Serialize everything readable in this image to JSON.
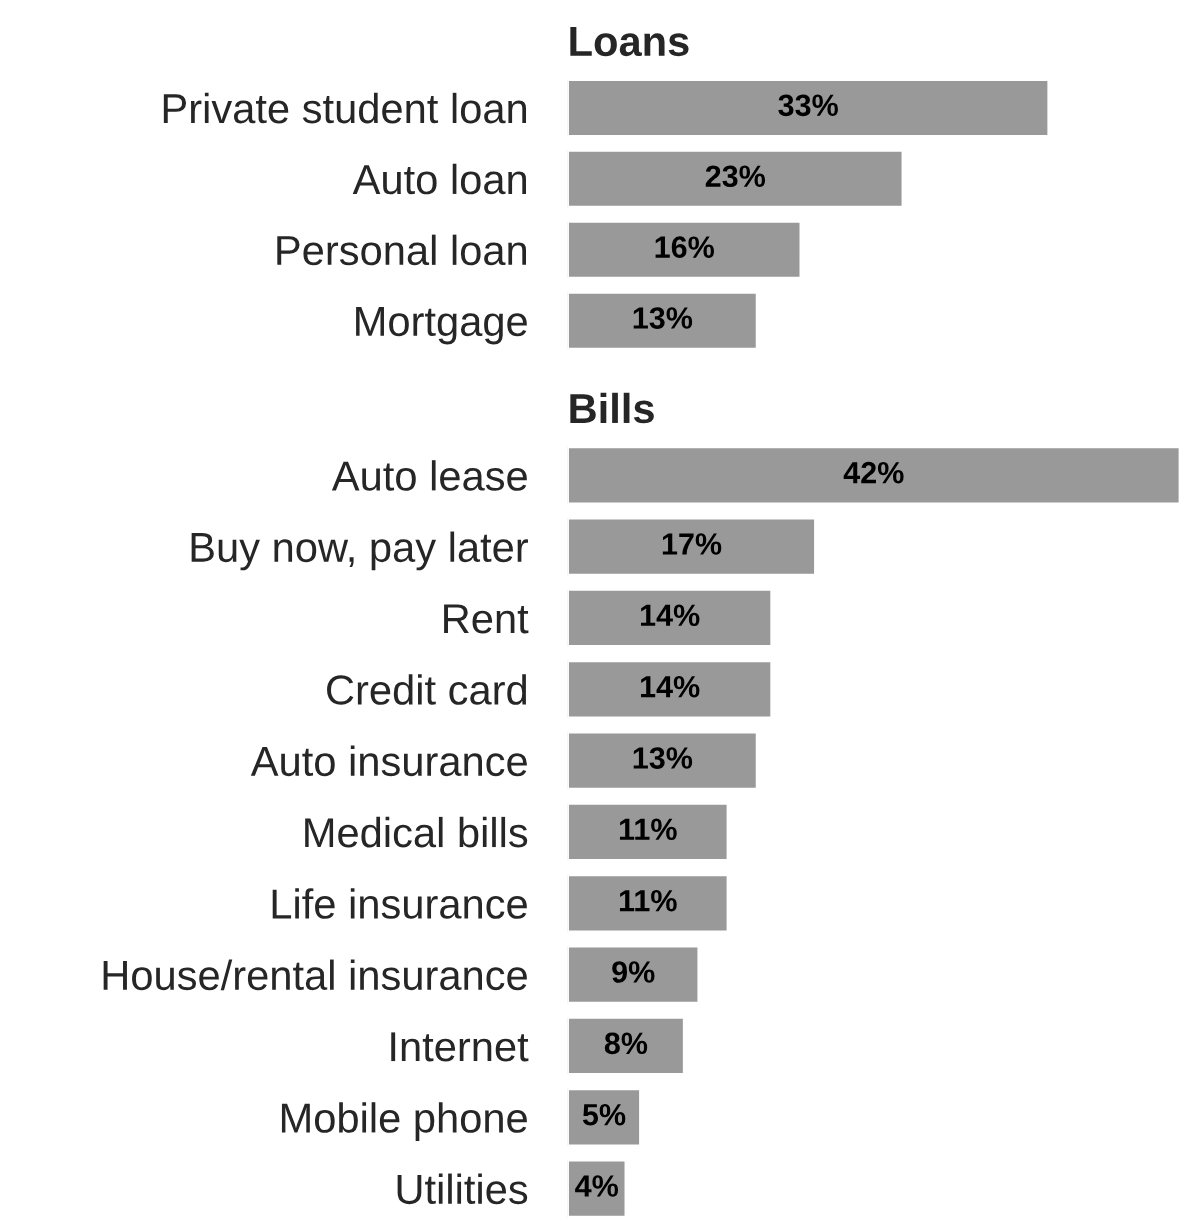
{
  "chart_data": [
    {
      "type": "bar",
      "orientation": "horizontal",
      "title": "Loans",
      "categories": [
        "Private student loan",
        "Auto loan",
        "Personal loan",
        "Mortgage"
      ],
      "series": [
        {
          "color": "#999999",
          "values": [
            33,
            23,
            16,
            13
          ],
          "value_labels": [
            "33%",
            "23%",
            "16%",
            "13%"
          ]
        }
      ],
      "tick_labels": "y",
      "grid": false,
      "legend": false
    },
    {
      "type": "bar",
      "orientation": "horizontal",
      "title": "Bills",
      "categories": [
        "Auto lease",
        "Buy now, pay later",
        "Rent",
        "Credit card",
        "Auto insurance",
        "Medical bills",
        "Life insurance",
        "House/rental insurance",
        "Internet",
        "Mobile phone",
        "Utilities"
      ],
      "series": [
        {
          "color": "#999999",
          "values": [
            42,
            17,
            14,
            14,
            13,
            11,
            11,
            9,
            8,
            5,
            4
          ],
          "value_labels": [
            "42%",
            "17%",
            "14%",
            "14%",
            "13%",
            "11%",
            "11%",
            "9%",
            "8%",
            "5%",
            "4%"
          ]
        }
      ],
      "tick_labels": "y",
      "grid": false,
      "legend": false
    }
  ]
}
